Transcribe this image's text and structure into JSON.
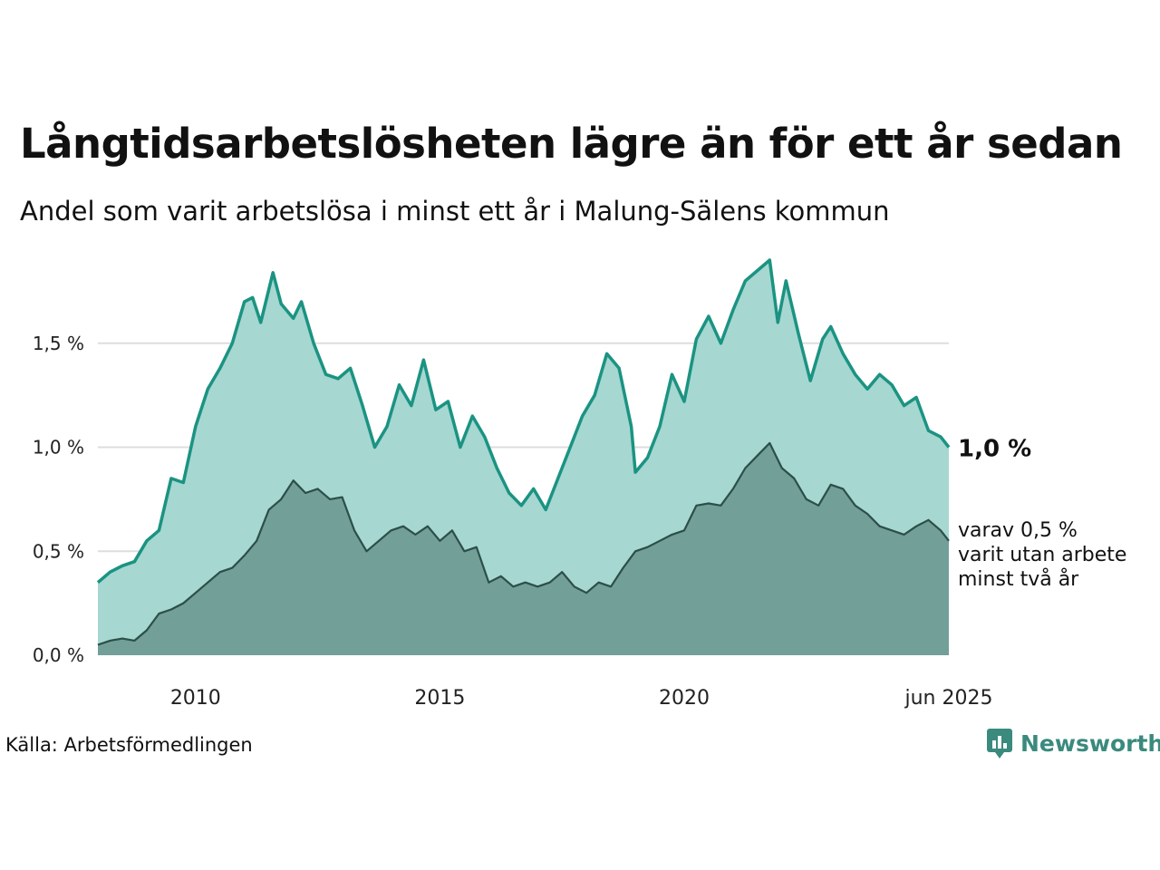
{
  "header": {
    "title": "Långtidsarbetslösheten lägre än för ett år sedan",
    "subtitle": "Andel som varit arbetslösa i minst ett år i Malung-Sälens kommun"
  },
  "footer": {
    "source": "Källa: Arbetsförmedlingen",
    "brand": "Newsworthy",
    "brand_icon": "newsworthy-logo-icon"
  },
  "colors": {
    "series1_line": "#1b9382",
    "series1_fill": "#a6d7d1",
    "series2_line": "#2c4e49",
    "series2_fill": "#729f98",
    "grid": "#dddddd",
    "brand": "#3a8a7e"
  },
  "chart_data": {
    "type": "area",
    "x_axis": {
      "start": "2008-01",
      "end": "2025-06",
      "ticks": [
        {
          "value": "2010-01",
          "label": "2010"
        },
        {
          "value": "2015-01",
          "label": "2015"
        },
        {
          "value": "2020-01",
          "label": "2020"
        },
        {
          "value": "2025-06",
          "label": "jun 2025"
        }
      ]
    },
    "y_axis": {
      "min": 0,
      "max": 1.9,
      "ticks": [
        {
          "value": 0.0,
          "label": "0,0 %"
        },
        {
          "value": 0.5,
          "label": "0,5 %"
        },
        {
          "value": 1.0,
          "label": "1,0 %"
        },
        {
          "value": 1.5,
          "label": "1,5 %"
        }
      ],
      "grid": true
    },
    "series": [
      {
        "key": "minst-ett-ar",
        "end_label": "1,0 %",
        "points": [
          [
            "2008-01",
            0.35
          ],
          [
            "2008-04",
            0.4
          ],
          [
            "2008-07",
            0.43
          ],
          [
            "2008-10",
            0.45
          ],
          [
            "2009-01",
            0.55
          ],
          [
            "2009-04",
            0.6
          ],
          [
            "2009-07",
            0.85
          ],
          [
            "2009-10",
            0.83
          ],
          [
            "2010-01",
            1.1
          ],
          [
            "2010-04",
            1.28
          ],
          [
            "2010-07",
            1.38
          ],
          [
            "2010-10",
            1.5
          ],
          [
            "2011-01",
            1.7
          ],
          [
            "2011-03",
            1.72
          ],
          [
            "2011-05",
            1.6
          ],
          [
            "2011-08",
            1.84
          ],
          [
            "2011-10",
            1.69
          ],
          [
            "2012-01",
            1.62
          ],
          [
            "2012-03",
            1.7
          ],
          [
            "2012-06",
            1.5
          ],
          [
            "2012-09",
            1.35
          ],
          [
            "2012-12",
            1.33
          ],
          [
            "2013-03",
            1.38
          ],
          [
            "2013-06",
            1.2
          ],
          [
            "2013-09",
            1.0
          ],
          [
            "2013-12",
            1.1
          ],
          [
            "2014-03",
            1.3
          ],
          [
            "2014-06",
            1.2
          ],
          [
            "2014-09",
            1.42
          ],
          [
            "2014-12",
            1.18
          ],
          [
            "2015-03",
            1.22
          ],
          [
            "2015-06",
            1.0
          ],
          [
            "2015-09",
            1.15
          ],
          [
            "2015-12",
            1.05
          ],
          [
            "2016-03",
            0.9
          ],
          [
            "2016-06",
            0.78
          ],
          [
            "2016-09",
            0.72
          ],
          [
            "2016-12",
            0.8
          ],
          [
            "2017-03",
            0.7
          ],
          [
            "2017-06",
            0.85
          ],
          [
            "2017-09",
            1.0
          ],
          [
            "2017-12",
            1.15
          ],
          [
            "2018-03",
            1.25
          ],
          [
            "2018-06",
            1.45
          ],
          [
            "2018-09",
            1.38
          ],
          [
            "2018-12",
            1.1
          ],
          [
            "2019-01",
            0.88
          ],
          [
            "2019-04",
            0.95
          ],
          [
            "2019-07",
            1.1
          ],
          [
            "2019-10",
            1.35
          ],
          [
            "2020-01",
            1.22
          ],
          [
            "2020-04",
            1.52
          ],
          [
            "2020-07",
            1.63
          ],
          [
            "2020-10",
            1.5
          ],
          [
            "2021-01",
            1.66
          ],
          [
            "2021-04",
            1.8
          ],
          [
            "2021-07",
            1.85
          ],
          [
            "2021-10",
            1.9
          ],
          [
            "2021-12",
            1.6
          ],
          [
            "2022-02",
            1.8
          ],
          [
            "2022-05",
            1.55
          ],
          [
            "2022-08",
            1.32
          ],
          [
            "2022-11",
            1.52
          ],
          [
            "2023-01",
            1.58
          ],
          [
            "2023-04",
            1.45
          ],
          [
            "2023-07",
            1.35
          ],
          [
            "2023-10",
            1.28
          ],
          [
            "2024-01",
            1.35
          ],
          [
            "2024-04",
            1.3
          ],
          [
            "2024-07",
            1.2
          ],
          [
            "2024-10",
            1.24
          ],
          [
            "2025-01",
            1.08
          ],
          [
            "2025-04",
            1.05
          ],
          [
            "2025-06",
            1.0
          ]
        ]
      },
      {
        "key": "minst-tva-ar",
        "end_label": "varav 0,5 %\nvarit utan arbete\nminst två år",
        "points": [
          [
            "2008-01",
            0.05
          ],
          [
            "2008-04",
            0.07
          ],
          [
            "2008-07",
            0.08
          ],
          [
            "2008-10",
            0.07
          ],
          [
            "2009-01",
            0.12
          ],
          [
            "2009-04",
            0.2
          ],
          [
            "2009-07",
            0.22
          ],
          [
            "2009-10",
            0.25
          ],
          [
            "2010-01",
            0.3
          ],
          [
            "2010-04",
            0.35
          ],
          [
            "2010-07",
            0.4
          ],
          [
            "2010-10",
            0.42
          ],
          [
            "2011-01",
            0.48
          ],
          [
            "2011-04",
            0.55
          ],
          [
            "2011-07",
            0.7
          ],
          [
            "2011-10",
            0.75
          ],
          [
            "2012-01",
            0.84
          ],
          [
            "2012-04",
            0.78
          ],
          [
            "2012-07",
            0.8
          ],
          [
            "2012-10",
            0.75
          ],
          [
            "2013-01",
            0.76
          ],
          [
            "2013-04",
            0.6
          ],
          [
            "2013-07",
            0.5
          ],
          [
            "2013-10",
            0.55
          ],
          [
            "2014-01",
            0.6
          ],
          [
            "2014-04",
            0.62
          ],
          [
            "2014-07",
            0.58
          ],
          [
            "2014-10",
            0.62
          ],
          [
            "2015-01",
            0.55
          ],
          [
            "2015-04",
            0.6
          ],
          [
            "2015-07",
            0.5
          ],
          [
            "2015-10",
            0.52
          ],
          [
            "2016-01",
            0.35
          ],
          [
            "2016-04",
            0.38
          ],
          [
            "2016-07",
            0.33
          ],
          [
            "2016-10",
            0.35
          ],
          [
            "2017-01",
            0.33
          ],
          [
            "2017-04",
            0.35
          ],
          [
            "2017-07",
            0.4
          ],
          [
            "2017-10",
            0.33
          ],
          [
            "2018-01",
            0.3
          ],
          [
            "2018-04",
            0.35
          ],
          [
            "2018-07",
            0.33
          ],
          [
            "2018-10",
            0.42
          ],
          [
            "2019-01",
            0.5
          ],
          [
            "2019-04",
            0.52
          ],
          [
            "2019-07",
            0.55
          ],
          [
            "2019-10",
            0.58
          ],
          [
            "2020-01",
            0.6
          ],
          [
            "2020-04",
            0.72
          ],
          [
            "2020-07",
            0.73
          ],
          [
            "2020-10",
            0.72
          ],
          [
            "2021-01",
            0.8
          ],
          [
            "2021-04",
            0.9
          ],
          [
            "2021-07",
            0.96
          ],
          [
            "2021-10",
            1.02
          ],
          [
            "2022-01",
            0.9
          ],
          [
            "2022-04",
            0.85
          ],
          [
            "2022-07",
            0.75
          ],
          [
            "2022-10",
            0.72
          ],
          [
            "2023-01",
            0.82
          ],
          [
            "2023-04",
            0.8
          ],
          [
            "2023-07",
            0.72
          ],
          [
            "2023-10",
            0.68
          ],
          [
            "2024-01",
            0.62
          ],
          [
            "2024-04",
            0.6
          ],
          [
            "2024-07",
            0.58
          ],
          [
            "2024-10",
            0.62
          ],
          [
            "2025-01",
            0.65
          ],
          [
            "2025-04",
            0.6
          ],
          [
            "2025-06",
            0.55
          ]
        ]
      }
    ]
  }
}
